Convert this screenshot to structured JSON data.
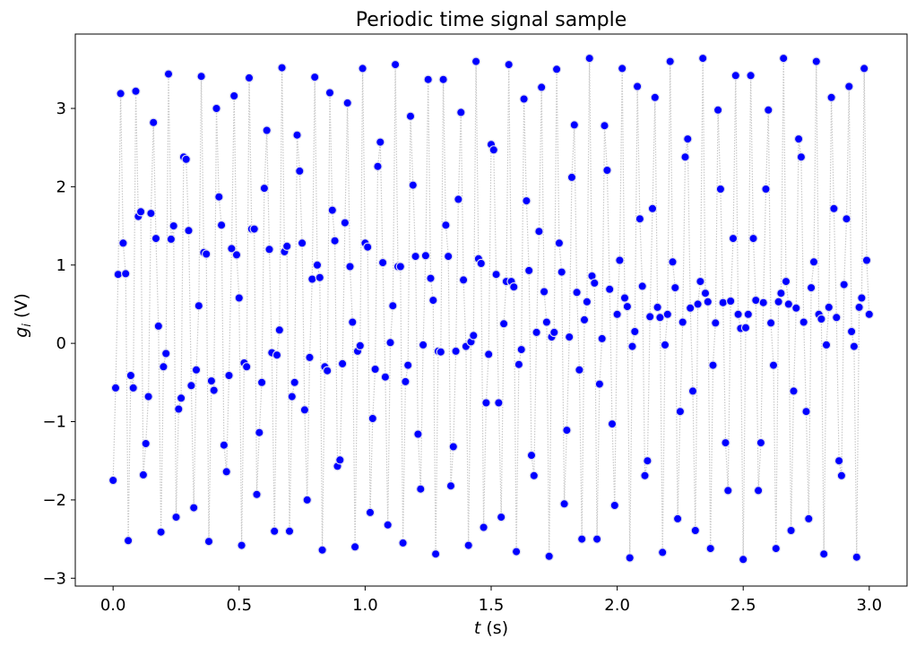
{
  "chart_data": {
    "type": "scatter",
    "title": "Periodic time signal sample",
    "xlabel": "t (s)",
    "ylabel": "g_i (V)",
    "xlabel_parts": {
      "var": "t",
      "unit": " (s)"
    },
    "ylabel_parts": {
      "var": "g",
      "sub": "i",
      "unit": " (V)"
    },
    "xlim": [
      -0.15,
      3.15
    ],
    "ylim": [
      -3.1,
      3.95
    ],
    "xticks": [
      0.0,
      0.5,
      1.0,
      1.5,
      2.0,
      2.5,
      3.0
    ],
    "xtick_labels": [
      "0.0",
      "0.5",
      "1.0",
      "1.5",
      "2.0",
      "2.5",
      "3.0"
    ],
    "yticks": [
      -3,
      -2,
      -1,
      0,
      1,
      2,
      3
    ],
    "ytick_labels": [
      "−3",
      "−2",
      "−1",
      "0",
      "1",
      "2",
      "3"
    ],
    "grid": false,
    "legend": null,
    "marker_color": "#0000ff",
    "marker_edge_color": "#dcdcf0",
    "line_color": "#c8c8c8",
    "line_style": "dotted",
    "sample_interval": 0.01,
    "x": [
      0.0,
      0.01,
      0.02,
      0.03,
      0.04,
      0.05,
      0.06,
      0.07,
      0.08,
      0.09,
      0.1,
      0.11,
      0.12,
      0.13,
      0.14,
      0.15,
      0.16,
      0.17,
      0.18,
      0.19,
      0.2,
      0.21,
      0.22,
      0.23,
      0.24,
      0.25,
      0.26,
      0.27,
      0.28,
      0.29,
      0.3,
      0.31,
      0.32,
      0.33,
      0.34,
      0.35,
      0.36,
      0.37,
      0.38,
      0.39,
      0.4,
      0.41,
      0.42,
      0.43,
      0.44,
      0.45,
      0.46,
      0.47,
      0.48,
      0.49,
      0.5,
      0.51,
      0.52,
      0.53,
      0.54,
      0.55,
      0.56,
      0.57,
      0.58,
      0.59,
      0.6,
      0.61,
      0.62,
      0.63,
      0.64,
      0.65,
      0.66,
      0.67,
      0.68,
      0.69,
      0.7,
      0.71,
      0.72,
      0.73,
      0.74,
      0.75,
      0.76,
      0.77,
      0.78,
      0.79,
      0.8,
      0.81,
      0.82,
      0.83,
      0.84,
      0.85,
      0.86,
      0.87,
      0.88,
      0.89,
      0.9,
      0.91,
      0.92,
      0.93,
      0.94,
      0.95,
      0.96,
      0.97,
      0.98,
      0.99,
      1.0,
      1.01,
      1.02,
      1.03,
      1.04,
      1.05,
      1.06,
      1.07,
      1.08,
      1.09,
      1.1,
      1.11,
      1.12,
      1.13,
      1.14,
      1.15,
      1.16,
      1.17,
      1.18,
      1.19,
      1.2,
      1.21,
      1.22,
      1.23,
      1.24,
      1.25,
      1.26,
      1.27,
      1.28,
      1.29,
      1.3,
      1.31,
      1.32,
      1.33,
      1.34,
      1.35,
      1.36,
      1.37,
      1.38,
      1.39,
      1.4,
      1.41,
      1.42,
      1.43,
      1.44,
      1.45,
      1.46,
      1.47,
      1.48,
      1.49,
      1.5,
      1.51,
      1.52,
      1.53,
      1.54,
      1.55,
      1.56,
      1.57,
      1.58,
      1.59,
      1.6,
      1.61,
      1.62,
      1.63,
      1.64,
      1.65,
      1.66,
      1.67,
      1.68,
      1.69,
      1.7,
      1.71,
      1.72,
      1.73,
      1.74,
      1.75,
      1.76,
      1.77,
      1.78,
      1.79,
      1.8,
      1.81,
      1.82,
      1.83,
      1.84,
      1.85,
      1.86,
      1.87,
      1.88,
      1.89,
      1.9,
      1.91,
      1.92,
      1.93,
      1.94,
      1.95,
      1.96,
      1.97,
      1.98,
      1.99,
      2.0,
      2.01,
      2.02,
      2.03,
      2.04,
      2.05,
      2.06,
      2.07,
      2.08,
      2.09,
      2.1,
      2.11,
      2.12,
      2.13,
      2.14,
      2.15,
      2.16,
      2.17,
      2.18,
      2.19,
      2.2,
      2.21,
      2.22,
      2.23,
      2.24,
      2.25,
      2.26,
      2.27,
      2.28,
      2.29,
      2.3,
      2.31,
      2.32,
      2.33,
      2.34,
      2.35,
      2.36,
      2.37,
      2.38,
      2.39,
      2.4,
      2.41,
      2.42,
      2.43,
      2.44,
      2.45,
      2.46,
      2.47,
      2.48,
      2.49,
      2.5,
      2.51,
      2.52,
      2.53,
      2.54,
      2.55,
      2.56,
      2.57,
      2.58,
      2.59,
      2.6,
      2.61,
      2.62,
      2.63,
      2.64,
      2.65,
      2.66,
      2.67,
      2.68,
      2.69,
      2.7,
      2.71,
      2.72,
      2.73,
      2.74,
      2.75,
      2.76,
      2.77,
      2.78,
      2.79,
      2.8,
      2.81,
      2.82,
      2.83,
      2.84,
      2.85,
      2.86,
      2.87,
      2.88,
      2.89,
      2.9,
      2.91,
      2.92,
      2.93,
      2.94,
      2.95,
      2.96,
      2.97,
      2.98,
      2.99,
      3.0
    ],
    "values": [
      -1.75,
      -0.57,
      0.88,
      3.19,
      1.28,
      0.89,
      -2.52,
      -0.41,
      -0.57,
      3.22,
      1.62,
      1.68,
      -1.68,
      -1.28,
      -0.68,
      1.66,
      2.82,
      1.34,
      0.22,
      -2.41,
      -0.3,
      -0.13,
      3.44,
      1.33,
      1.5,
      -2.22,
      -0.84,
      -0.7,
      2.38,
      2.35,
      1.44,
      -0.54,
      -2.1,
      -0.34,
      0.48,
      3.41,
      1.16,
      1.14,
      -2.53,
      -0.48,
      -0.6,
      3.0,
      1.87,
      1.51,
      -1.3,
      -1.64,
      -0.41,
      1.21,
      3.16,
      1.13,
      0.58,
      -2.58,
      -0.25,
      -0.3,
      3.39,
      1.46,
      1.46,
      -1.93,
      -1.14,
      -0.5,
      1.98,
      2.72,
      1.2,
      -0.12,
      -2.4,
      -0.15,
      0.17,
      3.52,
      1.17,
      1.24,
      -2.4,
      -0.68,
      -0.5,
      2.66,
      2.2,
      1.28,
      -0.85,
      -2.0,
      -0.18,
      0.82,
      3.4,
      1.0,
      0.84,
      -2.64,
      -0.3,
      -0.35,
      3.2,
      1.7,
      1.31,
      -1.57,
      -1.49,
      -0.26,
      1.54,
      3.07,
      0.98,
      0.27,
      -2.6,
      -0.1,
      -0.03,
      3.51,
      1.28,
      1.23,
      -2.16,
      -0.96,
      -0.33,
      2.26,
      2.57,
      1.03,
      -0.43,
      -2.32,
      0.01,
      0.48,
      3.56,
      0.98,
      0.98,
      -2.55,
      -0.49,
      -0.28,
      2.9,
      2.02,
      1.11,
      -1.16,
      -1.86,
      -0.02,
      1.12,
      3.37,
      0.83,
      0.55,
      -2.69,
      -0.1,
      -0.11,
      3.37,
      1.51,
      1.11,
      -1.82,
      -1.32,
      -0.1,
      1.84,
      2.95,
      0.81,
      -0.04,
      -2.58,
      0.02,
      0.1,
      3.6,
      1.08,
      1.02,
      -2.35,
      -0.76,
      -0.14,
      2.54,
      2.47,
      0.88,
      -0.76,
      -2.22,
      0.25,
      0.79,
      3.56,
      0.79,
      0.72,
      -2.66,
      -0.27,
      -0.08,
      3.12,
      1.82,
      0.93,
      -1.43,
      -1.69,
      0.14,
      1.43,
      3.27,
      0.66,
      0.27,
      -2.72,
      0.08,
      0.14,
      3.5,
      1.28,
      0.91,
      -2.05,
      -1.11,
      0.08,
      2.12,
      2.79,
      0.65,
      -0.34,
      -2.5,
      0.3,
      0.53,
      3.64,
      0.86,
      0.77,
      -2.5,
      -0.52,
      0.06,
      2.78,
      2.21,
      0.69,
      -1.03,
      -2.07,
      0.37,
      1.06,
      3.51,
      0.58,
      0.47,
      -2.74,
      -0.04,
      0.15,
      3.28,
      1.59,
      0.73,
      -1.69,
      -1.5,
      0.34,
      1.72,
      3.14,
      0.46,
      0.33,
      -2.67,
      -0.02,
      0.37,
      3.6,
      1.04,
      0.71,
      -2.24,
      -0.87,
      0.27,
      2.38,
      2.61,
      0.45,
      -0.61,
      -2.39,
      0.5,
      0.79,
      3.64,
      0.64,
      0.53,
      -2.62,
      -0.28,
      0.26,
      2.98,
      1.97,
      0.52,
      -1.27,
      -1.88,
      0.54,
      1.34,
      3.42,
      0.37,
      0.19,
      -2.76,
      0.2,
      0.37,
      3.42,
      1.34,
      0.55,
      -1.88,
      -1.27,
      0.52,
      1.97,
      2.98,
      0.26,
      -0.28,
      -2.62,
      0.53,
      0.64,
      3.64,
      0.79,
      0.5,
      -2.39,
      -0.61,
      0.45,
      2.61,
      2.38,
      0.27,
      -0.87,
      -2.24,
      0.71,
      1.04,
      3.6,
      0.37,
      0.31,
      -2.69,
      -0.02,
      0.46,
      3.14,
      1.72,
      0.33,
      -1.5,
      -1.69,
      0.75,
      1.59,
      3.28,
      0.15,
      -0.04,
      -2.73,
      0.46,
      0.58,
      3.51,
      1.06,
      0.37
    ]
  }
}
